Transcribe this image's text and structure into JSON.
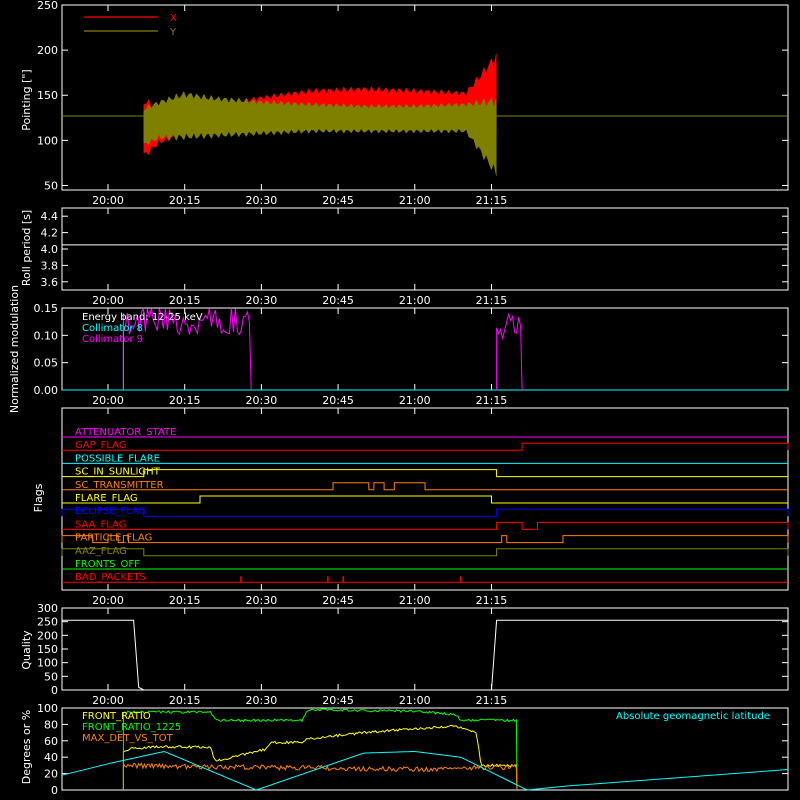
{
  "chart_data": [
    {
      "type": "line",
      "ylabel": "Pointing [\"]",
      "ylim": [
        45,
        250
      ],
      "yticks": [
        50,
        100,
        150,
        200,
        250
      ],
      "xticks": [
        "20:00",
        "20:15",
        "20:30",
        "20:45",
        "21:00",
        "21:15"
      ],
      "legend_placement": "top-left",
      "legend": [
        {
          "name": "X",
          "color": "#ff0000"
        },
        {
          "name": "Y",
          "color": "#808000"
        }
      ],
      "baseline_value": 127,
      "baseline_color": "#808000",
      "series": [
        {
          "name": "X",
          "color": "#ff0000",
          "x": [
            "20:07",
            "20:10",
            "20:15",
            "20:20",
            "20:30",
            "20:40",
            "20:50",
            "21:00",
            "21:10",
            "21:16"
          ],
          "min": [
            78,
            95,
            105,
            108,
            110,
            112,
            112,
            112,
            112,
            105
          ],
          "max": [
            148,
            140,
            138,
            140,
            150,
            158,
            160,
            158,
            155,
            200
          ]
        },
        {
          "name": "Y",
          "color": "#808000",
          "x": [
            "20:07",
            "20:10",
            "20:15",
            "20:20",
            "20:30",
            "20:40",
            "20:50",
            "21:00",
            "21:10",
            "21:16"
          ],
          "min": [
            92,
            100,
            100,
            102,
            105,
            108,
            108,
            108,
            108,
            57
          ],
          "max": [
            138,
            145,
            155,
            150,
            145,
            142,
            140,
            140,
            142,
            150
          ]
        }
      ]
    },
    {
      "type": "line",
      "ylabel": "Roll period [s]",
      "ylim": [
        3.5,
        4.5
      ],
      "yticks": [
        "3.6",
        "3.8",
        "4.0",
        "4.2",
        "4.4"
      ],
      "xticks": [
        "20:00",
        "20:15",
        "20:30",
        "20:45",
        "21:00",
        "21:15"
      ],
      "series": [
        {
          "x": [
            "19:51",
            "22:13"
          ],
          "y": [
            4.05,
            4.05
          ],
          "color": "#ffffff"
        }
      ]
    },
    {
      "type": "line",
      "ylabel": "Normalized modulation",
      "ylim": [
        0,
        0.15
      ],
      "yticks": [
        "0.00",
        "0.05",
        "0.10",
        "0.15"
      ],
      "xticks": [
        "20:00",
        "20:15",
        "20:30",
        "20:45",
        "21:00",
        "21:15"
      ],
      "legend_placement": "top-left",
      "legend": [
        {
          "name": "Energy band:  12-25 keV",
          "color": "#ffffff"
        },
        {
          "name": "Collimator 8",
          "color": "#00ffff"
        },
        {
          "name": "Collimator 9",
          "color": "#ff00ff"
        }
      ],
      "series": [
        {
          "name": "Collimator 8",
          "color": "#00ffff",
          "x": [
            "19:51",
            "22:13"
          ],
          "y": [
            0,
            0
          ]
        },
        {
          "name": "Collimator 9",
          "color": "#ff00ff",
          "segments": [
            {
              "x": [
                "20:03",
                "20:28"
              ],
              "band": [
                0.1,
                0.15
              ]
            },
            {
              "x": [
                "21:16",
                "21:21"
              ],
              "band": [
                0.09,
                0.14
              ]
            }
          ]
        }
      ]
    },
    {
      "type": "line",
      "ylabel": "Flags",
      "xticks": [
        "20:00",
        "20:15",
        "20:30",
        "20:45",
        "21:00",
        "21:15"
      ],
      "flags": [
        {
          "name": "ATTENUATOR_STATE",
          "color": "#ff00ff",
          "steps": []
        },
        {
          "name": "GAP_FLAG",
          "color": "#ff0000",
          "steps": [
            [
              "21:21",
              "22:13"
            ]
          ]
        },
        {
          "name": "POSSIBLE_FLARE",
          "color": "#00ffff",
          "steps": []
        },
        {
          "name": "SC_IN_SUNLIGHT",
          "color": "#ffff00",
          "steps": [
            [
              "20:07",
              "21:16"
            ]
          ]
        },
        {
          "name": "SC_TRANSMITTER",
          "color": "#ff8000",
          "steps": [
            [
              "20:44",
              "20:51"
            ],
            [
              "20:52",
              "20:54"
            ],
            [
              "20:56",
              "21:02"
            ]
          ]
        },
        {
          "name": "FLARE_FLAG",
          "color": "#ffff00",
          "steps": [
            [
              "20:18",
              "21:15"
            ]
          ]
        },
        {
          "name": "ECLIPSE_FLAG",
          "color": "#0000ff",
          "steps": [
            [
              "19:51",
              "20:07"
            ],
            [
              "21:16",
              "22:13"
            ]
          ]
        },
        {
          "name": "SAA_FLAG",
          "color": "#ff0000",
          "steps": [
            [
              "21:16",
              "21:21"
            ],
            [
              "21:24",
              "22:13"
            ]
          ]
        },
        {
          "name": "PARTICLE_FLAG",
          "color": "#ff8000",
          "steps": [
            [
              "19:51",
              "19:57"
            ],
            [
              "20:00",
              "20:02"
            ],
            [
              "20:03",
              "20:04"
            ],
            [
              "21:17",
              "21:18"
            ],
            [
              "21:29",
              "22:13"
            ]
          ]
        },
        {
          "name": "AAZ_FLAG",
          "color": "#808000",
          "steps": [
            [
              "19:51",
              "20:07"
            ],
            [
              "21:16",
              "22:13"
            ]
          ]
        },
        {
          "name": "FRONTS_OFF",
          "color": "#00ff00",
          "steps": []
        },
        {
          "name": "BAD_PACKETS",
          "color": "#ff0000",
          "spikes": [
            "20:26",
            "20:43",
            "20:46",
            "21:09"
          ]
        }
      ]
    },
    {
      "type": "line",
      "ylabel": "Quality",
      "ylim": [
        0,
        300
      ],
      "yticks": [
        0,
        50,
        100,
        150,
        200,
        250,
        300
      ],
      "xticks": [
        "20:00",
        "20:15",
        "20:30",
        "20:45",
        "21:00",
        "21:15"
      ],
      "series": [
        {
          "color": "#ffffff",
          "x": [
            "19:51",
            "20:05",
            "20:06",
            "20:07",
            "21:15",
            "21:16",
            "22:13"
          ],
          "y": [
            255,
            255,
            10,
            0,
            0,
            255,
            255
          ]
        }
      ]
    },
    {
      "type": "line",
      "ylabel": "Degrees or %",
      "ylim": [
        0,
        100
      ],
      "yticks": [
        0,
        20,
        40,
        60,
        80,
        100
      ],
      "legend_placement": "top-left",
      "legend": [
        {
          "name": "FRONT_RATIO",
          "color": "#ffff00"
        },
        {
          "name": "FRONT_RATIO_1225",
          "color": "#00ff00"
        },
        {
          "name": "MAX_DET_VS_TOT",
          "color": "#ff8000"
        }
      ],
      "annotation": {
        "text": "Absolute geomagnetic latitude",
        "color": "#00ffff"
      },
      "series": [
        {
          "name": "FRONT_RATIO",
          "color": "#ffff00",
          "x": [
            "20:03",
            "20:04",
            "20:10",
            "20:20",
            "20:21",
            "20:31",
            "20:32",
            "20:38",
            "20:39",
            "20:50",
            "21:00",
            "21:08",
            "21:12",
            "21:13",
            "21:20"
          ],
          "y": [
            47,
            50,
            53,
            52,
            35,
            50,
            58,
            58,
            62,
            70,
            75,
            78,
            70,
            30,
            30
          ]
        },
        {
          "name": "FRONT_RATIO_1225",
          "color": "#00ff00",
          "x": [
            "20:03",
            "20:10",
            "20:11",
            "20:20",
            "20:21",
            "20:38",
            "20:39",
            "21:00",
            "21:08",
            "21:09",
            "21:20"
          ],
          "y": [
            95,
            95,
            95,
            95,
            85,
            85,
            98,
            96,
            92,
            85,
            85
          ]
        },
        {
          "name": "MAX_DET_VS_TOT",
          "color": "#ff8000",
          "x": [
            "20:03",
            "20:20",
            "20:40",
            "21:00",
            "21:20"
          ],
          "y": [
            30,
            28,
            27,
            25,
            28
          ]
        },
        {
          "name": "Absolute geomagnetic latitude",
          "color": "#00ffff",
          "x": [
            "19:51",
            "20:00",
            "20:11",
            "20:29",
            "20:50",
            "21:00",
            "21:09",
            "21:22",
            "21:30",
            "22:13"
          ],
          "y": [
            18,
            32,
            47,
            0,
            45,
            47,
            40,
            0,
            5,
            25
          ]
        }
      ]
    }
  ]
}
